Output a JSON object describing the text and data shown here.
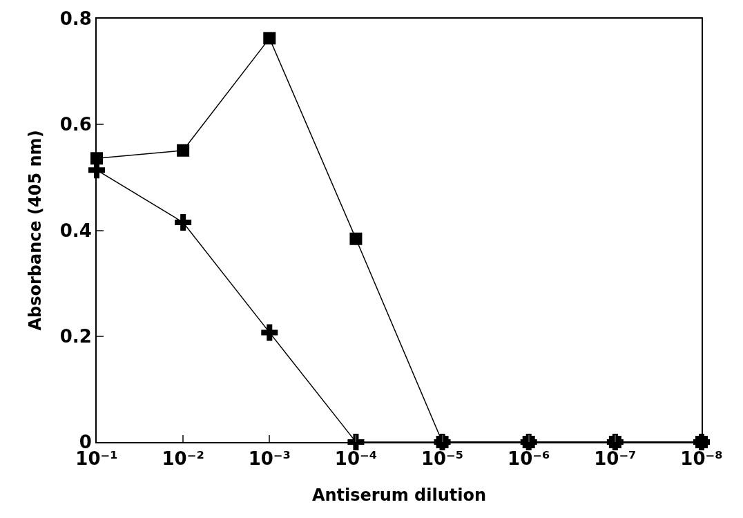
{
  "chart_data": {
    "type": "line",
    "xlabel": "Antiserum dilution",
    "ylabel": "Absorbance (405 nm)",
    "categories": [
      "10⁻¹",
      "10⁻²",
      "10⁻³",
      "10⁻⁴",
      "10⁻⁵",
      "10⁻⁶",
      "10⁻⁷",
      "10⁻⁸"
    ],
    "series": [
      {
        "color": "#000000",
        "marker": "square",
        "values": [
          0.536,
          0.551,
          0.763,
          0.384,
          0,
          0,
          0,
          0
        ]
      },
      {
        "color": "#000000",
        "marker": "cross",
        "values": [
          0.514,
          0.415,
          0.207,
          0,
          0,
          0,
          0,
          0
        ]
      }
    ],
    "ylim": [
      0,
      0.8
    ],
    "yticks": [
      0,
      0.2,
      0.4,
      0.6,
      0.8
    ],
    "line_style": "solid"
  }
}
